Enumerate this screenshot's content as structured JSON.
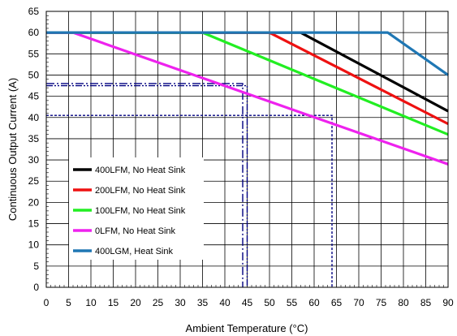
{
  "chart_data": {
    "type": "line",
    "title": "",
    "xlabel": "Ambient Temperature (°C)",
    "ylabel": "Continuous Output Current (A)",
    "xlim": [
      0,
      90
    ],
    "ylim": [
      0,
      65
    ],
    "x_ticks": [
      0,
      5,
      10,
      15,
      20,
      25,
      30,
      35,
      40,
      45,
      50,
      55,
      60,
      65,
      70,
      75,
      80,
      85,
      90
    ],
    "y_ticks": [
      0,
      5,
      10,
      15,
      20,
      25,
      30,
      35,
      40,
      45,
      50,
      55,
      60,
      65
    ],
    "grid": true,
    "legend_position": "bottom-left",
    "series": [
      {
        "name": "400LFM, No Heat Sink",
        "color": "#000000",
        "x": [
          0,
          57,
          90
        ],
        "y": [
          60,
          60,
          41.5
        ]
      },
      {
        "name": "200LFM, No Heat Sink",
        "color": "#ee1111",
        "x": [
          0,
          50,
          90
        ],
        "y": [
          60,
          60,
          38.5
        ]
      },
      {
        "name": "100LFM, No Heat Sink",
        "color": "#22ee22",
        "x": [
          0,
          35,
          90
        ],
        "y": [
          60,
          60,
          36
        ]
      },
      {
        "name": "0LFM, No Heat Sink",
        "color": "#ee22ee",
        "x": [
          0,
          6,
          90
        ],
        "y": [
          60,
          60,
          29
        ]
      },
      {
        "name": "400LGM, Heat Sink",
        "color": "#1f77b4",
        "x": [
          0,
          76.5,
          90
        ],
        "y": [
          60,
          60,
          50
        ]
      }
    ],
    "reference_lines": [
      {
        "style": "dash-dot",
        "color": "#000080",
        "x": 44,
        "y": 48
      },
      {
        "style": "dash-dot-dot",
        "color": "#000080",
        "x": 45,
        "y": 47.5
      },
      {
        "style": "dashed",
        "color": "#000080",
        "x": 64,
        "y": 40.5
      }
    ]
  }
}
